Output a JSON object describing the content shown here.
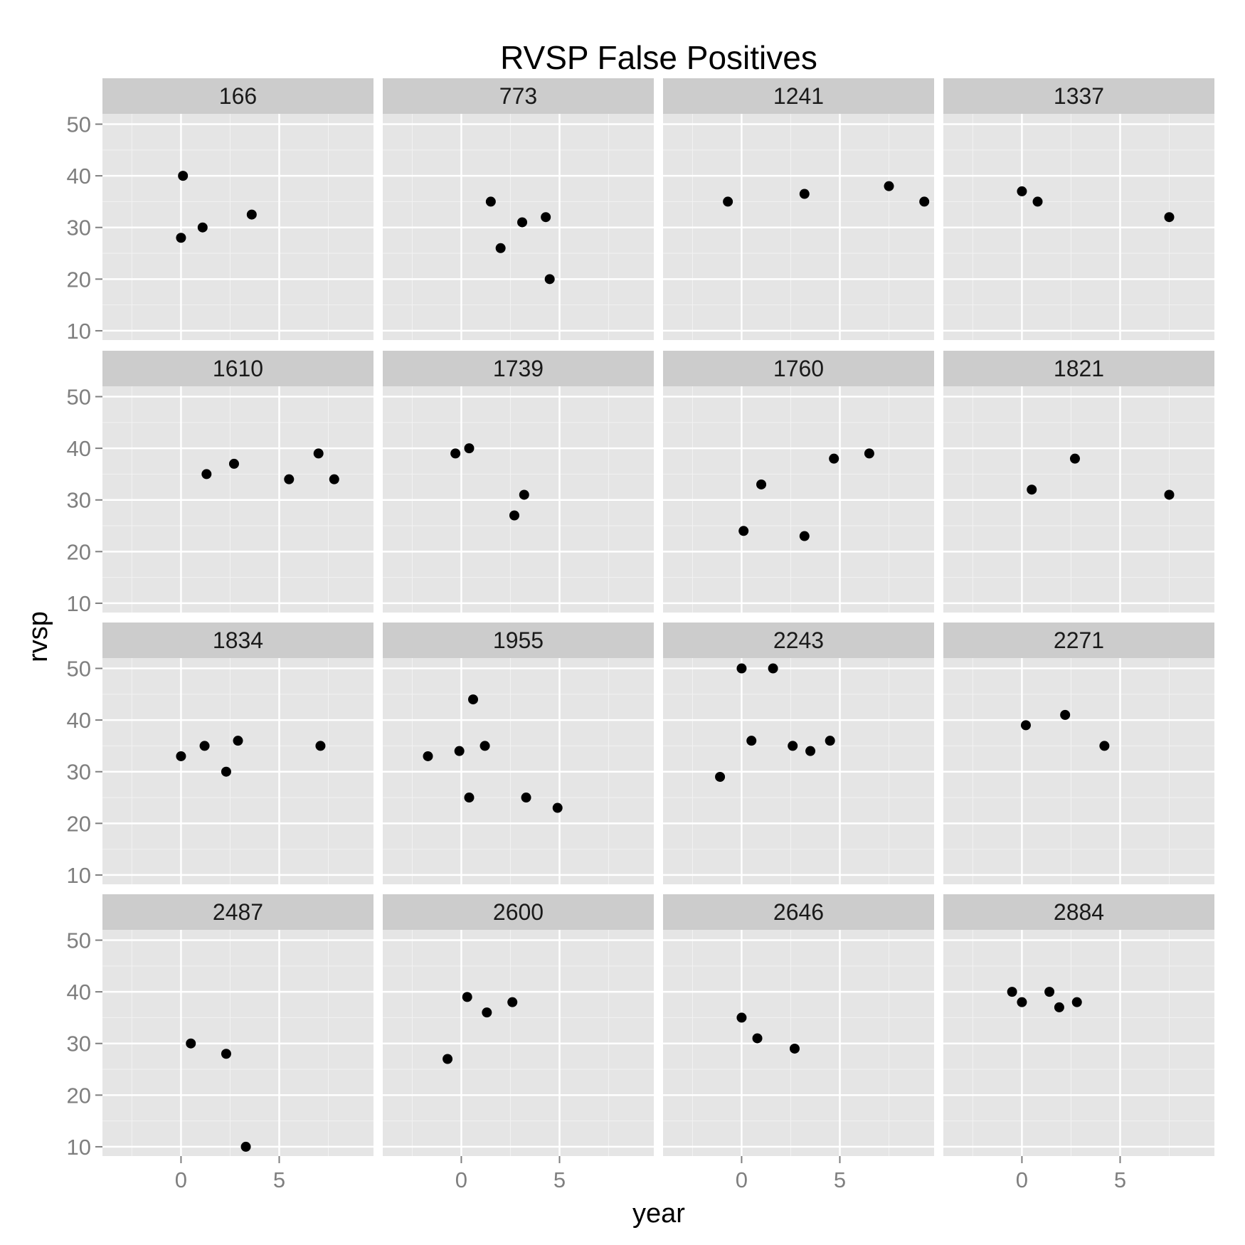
{
  "chart_data": {
    "type": "scatter",
    "title": "RVSP False Positives",
    "xlabel": "year",
    "ylabel": "rvsp",
    "xlim": [
      -4,
      9.8
    ],
    "ylim": [
      8.2,
      52
    ],
    "x_ticks": [
      0,
      5
    ],
    "y_ticks": [
      10,
      20,
      30,
      40,
      50
    ],
    "grid": true,
    "point_color": "#000000",
    "panel_bg": "#e5e5e5",
    "strip_bg": "#cccccc",
    "panels": [
      {
        "label": "166",
        "x": [
          0.1,
          1.1,
          0.0,
          3.6
        ],
        "y": [
          40,
          30,
          28,
          32.5
        ]
      },
      {
        "label": "773",
        "x": [
          1.5,
          2.0,
          3.1,
          4.3,
          4.5
        ],
        "y": [
          35,
          26,
          31,
          32,
          20
        ]
      },
      {
        "label": "1241",
        "x": [
          -0.7,
          3.2,
          7.5,
          9.3
        ],
        "y": [
          35,
          36.5,
          38,
          35
        ]
      },
      {
        "label": "1337",
        "x": [
          0.0,
          0.8,
          7.5
        ],
        "y": [
          37,
          35,
          32
        ]
      },
      {
        "label": "1610",
        "x": [
          1.3,
          2.7,
          5.5,
          7.0,
          7.8
        ],
        "y": [
          35,
          37,
          34,
          39,
          34
        ]
      },
      {
        "label": "1739",
        "x": [
          -0.3,
          0.4,
          2.7,
          3.2
        ],
        "y": [
          39,
          40,
          27,
          31
        ]
      },
      {
        "label": "1760",
        "x": [
          0.1,
          1.0,
          3.2,
          4.7,
          6.5
        ],
        "y": [
          24,
          33,
          23,
          38,
          39
        ]
      },
      {
        "label": "1821",
        "x": [
          0.5,
          2.7,
          7.5
        ],
        "y": [
          32,
          38,
          31
        ]
      },
      {
        "label": "1834",
        "x": [
          0.0,
          1.2,
          2.3,
          2.9,
          7.1
        ],
        "y": [
          33,
          35,
          30,
          36,
          35
        ]
      },
      {
        "label": "1955",
        "x": [
          -1.7,
          -0.1,
          0.4,
          0.6,
          1.2,
          3.3,
          4.9
        ],
        "y": [
          33,
          34,
          25,
          44,
          35,
          25,
          23
        ]
      },
      {
        "label": "2243",
        "x": [
          -1.1,
          0.0,
          0.5,
          1.6,
          2.6,
          3.5,
          4.5
        ],
        "y": [
          29,
          50,
          36,
          50,
          35,
          34,
          36
        ]
      },
      {
        "label": "2271",
        "x": [
          0.2,
          2.2,
          4.2
        ],
        "y": [
          39,
          41,
          35
        ]
      },
      {
        "label": "2487",
        "x": [
          0.5,
          2.3,
          3.3
        ],
        "y": [
          30,
          28,
          10
        ]
      },
      {
        "label": "2600",
        "x": [
          -0.7,
          0.3,
          1.3,
          2.6
        ],
        "y": [
          27,
          39,
          36,
          38
        ]
      },
      {
        "label": "2646",
        "x": [
          0.0,
          0.8,
          2.7
        ],
        "y": [
          35,
          31,
          29
        ]
      },
      {
        "label": "2884",
        "x": [
          -0.5,
          0.0,
          1.4,
          1.9,
          2.8
        ],
        "y": [
          40,
          38,
          40,
          37,
          38
        ]
      }
    ]
  }
}
